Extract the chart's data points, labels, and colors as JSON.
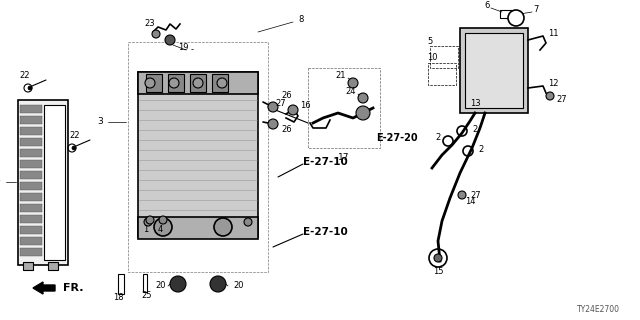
{
  "bg_color": "#ffffff",
  "line_color": "#000000",
  "labels": {
    "e2710": "E-27-10",
    "e2720": "E-27-20",
    "fr": "FR.",
    "diagram_code": "TY24E2700"
  },
  "figsize": [
    6.4,
    3.2
  ],
  "dpi": 100
}
